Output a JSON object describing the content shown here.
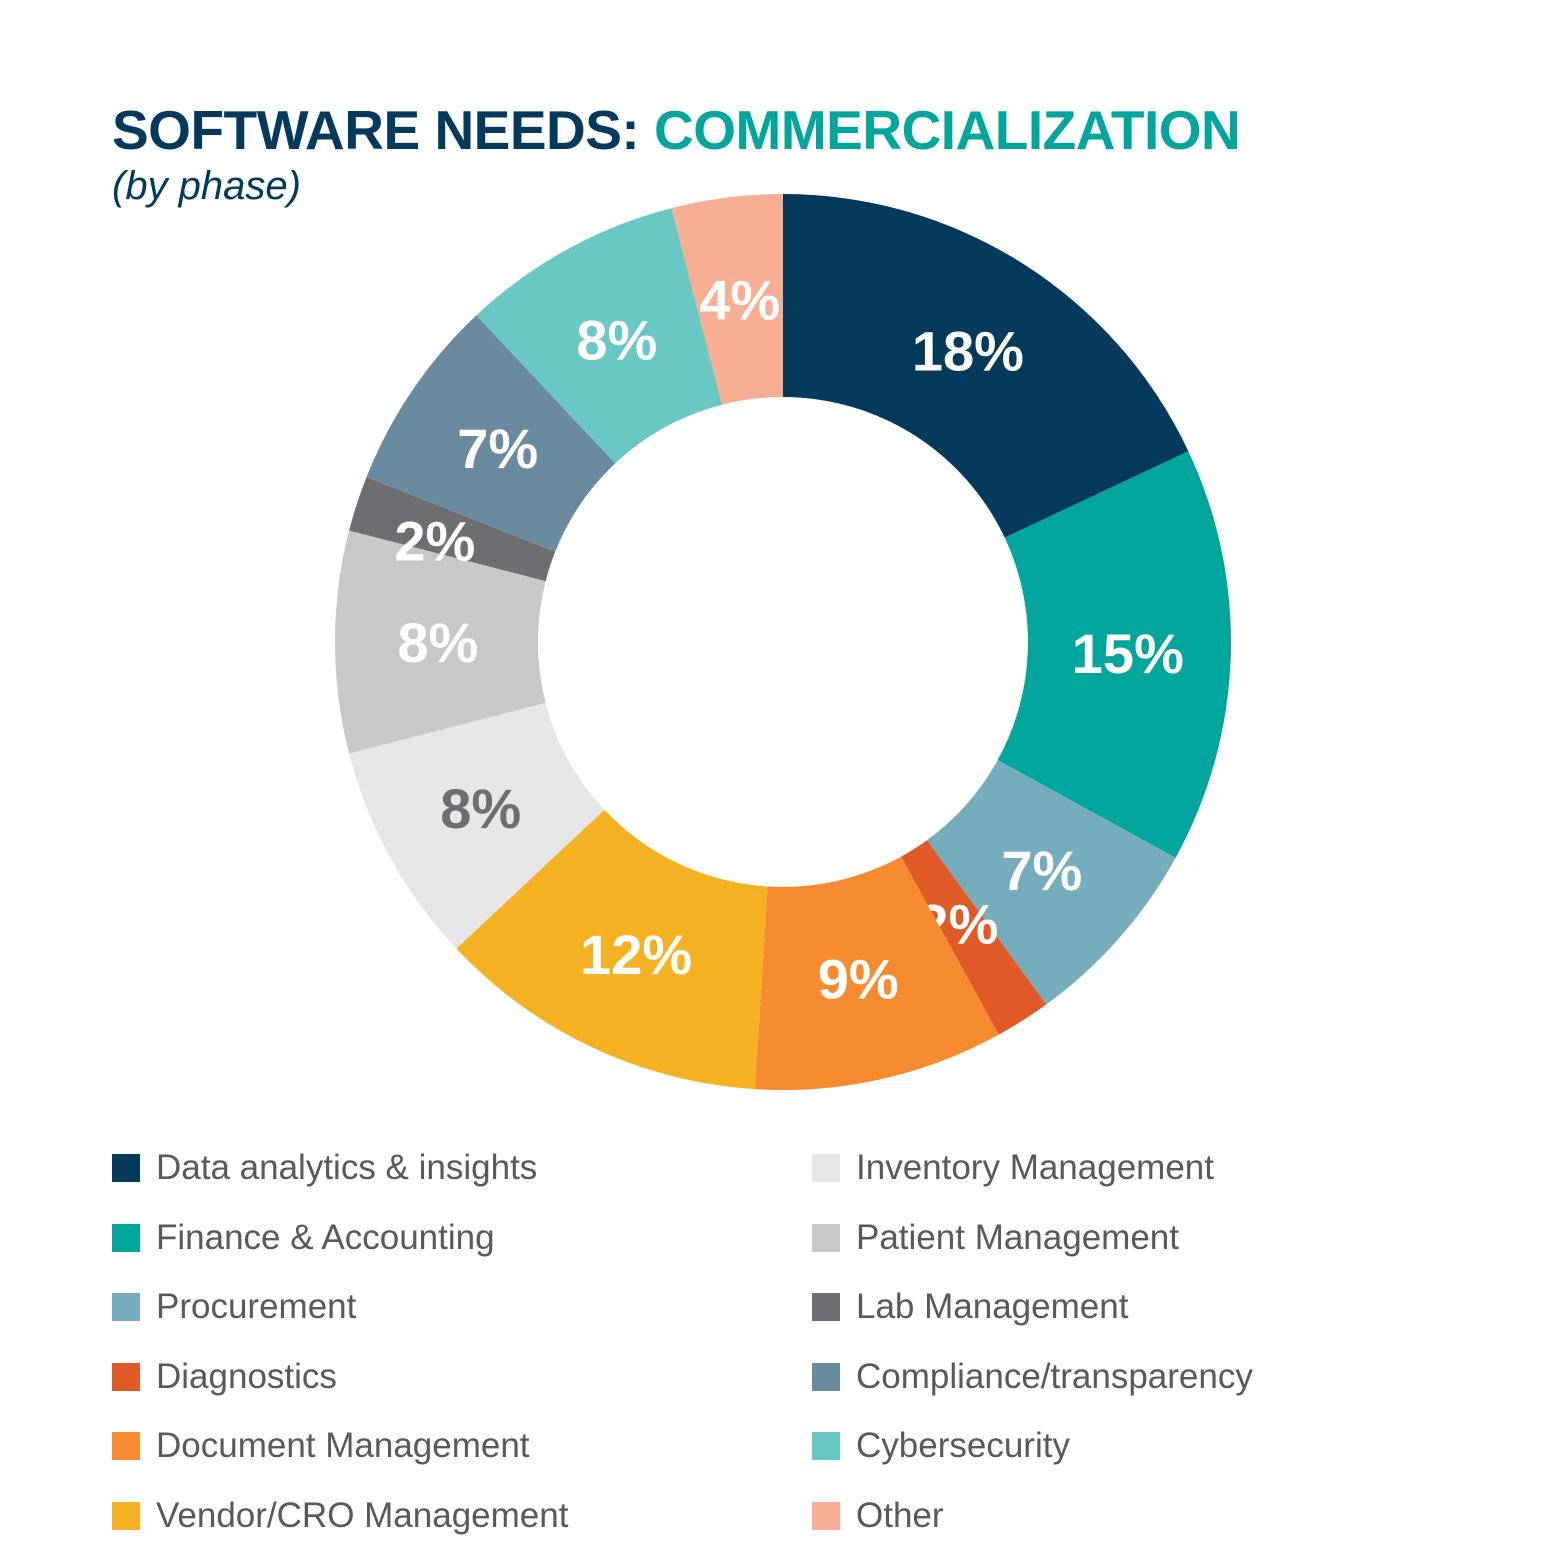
{
  "chart_data": {
    "type": "pie",
    "donut": true,
    "title": "SOFTWARE NEEDS:",
    "title_accent": "COMMERCIALIZATION",
    "subtitle": "(by phase)",
    "legend_position": "bottom",
    "slices": [
      {
        "label": "Data analytics & insights",
        "value": 18,
        "data_label": "18%",
        "color": "#033a5b",
        "label_color": "#ffffff"
      },
      {
        "label": "Finance & Accounting",
        "value": 15,
        "data_label": "15%",
        "color": "#00a69c",
        "label_color": "#ffffff"
      },
      {
        "label": "Procurement",
        "value": 7,
        "data_label": "7%",
        "color": "#76adbc",
        "label_color": "#ffffff"
      },
      {
        "label": "Diagnostics",
        "value": 2,
        "data_label": "2%",
        "color": "#e05a28",
        "label_color": "#ffffff"
      },
      {
        "label": "Document Management",
        "value": 9,
        "data_label": "9%",
        "color": "#f58a2e",
        "label_color": "#ffffff"
      },
      {
        "label": "Vendor/CRO Management",
        "value": 12,
        "data_label": "12%",
        "color": "#f4b223",
        "label_color": "#ffffff"
      },
      {
        "label": "Inventory Management",
        "value": 8,
        "data_label": "8%",
        "color": "#e6e6e8",
        "label_color": "#6d6e71"
      },
      {
        "label": "Patient Management",
        "value": 8,
        "data_label": "8%",
        "color": "#c8c8cb",
        "label_color": "#ffffff"
      },
      {
        "label": "Lab Management",
        "value": 2,
        "data_label": "2%",
        "color": "#6d6e72",
        "label_color": "#ffffff"
      },
      {
        "label": "Compliance/transparency",
        "value": 7,
        "data_label": "7%",
        "color": "#6a8aa0",
        "label_color": "#ffffff"
      },
      {
        "label": "Cybersecurity",
        "value": 8,
        "data_label": "8%",
        "color": "#69c8c4",
        "label_color": "#ffffff"
      },
      {
        "label": "Other",
        "value": 4,
        "data_label": "4%",
        "color": "#f8ae92",
        "label_color": "#ffffff"
      }
    ]
  }
}
